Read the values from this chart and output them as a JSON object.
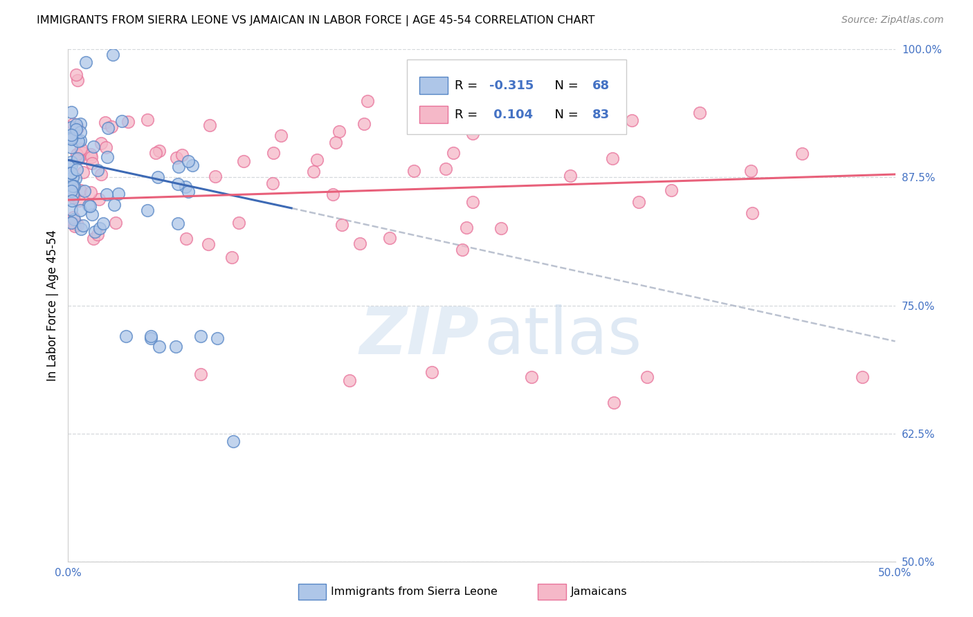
{
  "title": "IMMIGRANTS FROM SIERRA LEONE VS JAMAICAN IN LABOR FORCE | AGE 45-54 CORRELATION CHART",
  "source": "Source: ZipAtlas.com",
  "ylabel": "In Labor Force | Age 45-54",
  "xlim": [
    0.0,
    0.5
  ],
  "ylim": [
    0.5,
    1.0
  ],
  "yticks": [
    0.5,
    0.625,
    0.75,
    0.875,
    1.0
  ],
  "yticklabels_right": [
    "50.0%",
    "62.5%",
    "75.0%",
    "87.5%",
    "100.0%"
  ],
  "blue_R": -0.315,
  "blue_N": 68,
  "pink_R": 0.104,
  "pink_N": 83,
  "blue_fill": "#aec6e8",
  "pink_fill": "#f5b8c8",
  "blue_edge": "#5585c5",
  "pink_edge": "#e8729a",
  "blue_line_color": "#3d6ab5",
  "pink_line_color": "#e8607a",
  "gray_line_color": "#b0b8c8",
  "legend_blue_label": "Immigrants from Sierra Leone",
  "legend_pink_label": "Jamaicans",
  "blue_line_x0": 0.0,
  "blue_line_x1": 0.135,
  "blue_line_y0": 0.892,
  "blue_line_y1": 0.845,
  "gray_line_x0": 0.135,
  "gray_line_x1": 0.5,
  "gray_line_y0": 0.845,
  "gray_line_y1": 0.715,
  "pink_line_x0": 0.0,
  "pink_line_x1": 0.5,
  "pink_line_y0": 0.853,
  "pink_line_y1": 0.878
}
